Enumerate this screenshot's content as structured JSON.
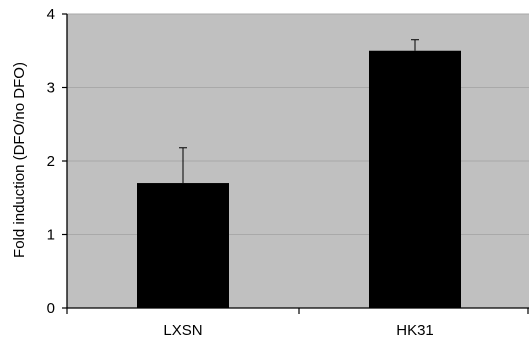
{
  "chart_data": {
    "type": "bar",
    "categories": [
      "LXSN",
      "HK31"
    ],
    "values": [
      1.7,
      3.5
    ],
    "error": [
      0.48,
      0.15
    ],
    "title": "",
    "xlabel": "",
    "ylabel": "Fold induction (DFO/no DFO)",
    "ylim": [
      0,
      4
    ],
    "yticks": [
      "0",
      "1",
      "2",
      "3",
      "4"
    ],
    "grid": true,
    "colors": {
      "plot_background": "#c0c0c0",
      "bar": "#000000",
      "grid": "#a9a9a9"
    }
  }
}
